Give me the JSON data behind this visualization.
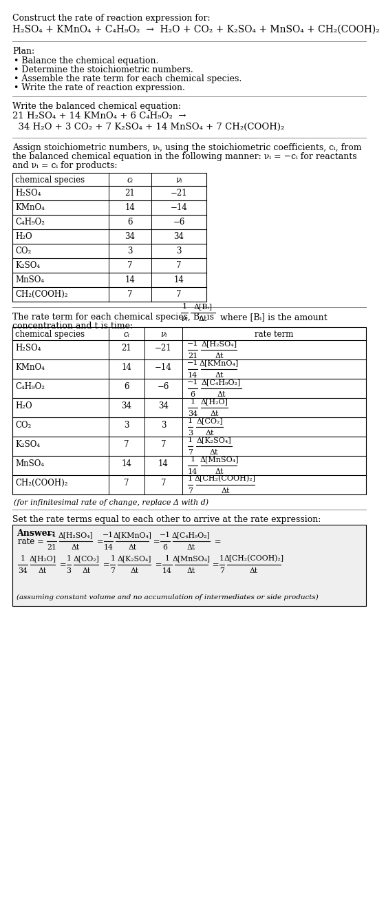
{
  "bg_color": "#ffffff",
  "font_family": "DejaVu Serif",
  "sections": {
    "title": "Construct the rate of reaction expression for:",
    "rxn_unbalanced": "H₂SO₄ + KMnO₄ + C₄H₉O₂  →  H₂O + CO₂ + K₂SO₄ + MnSO₄ + CH₂(COOH)₂",
    "plan_header": "Plan:",
    "plan_items": [
      "• Balance the chemical equation.",
      "• Determine the stoichiometric numbers.",
      "• Assemble the rate term for each chemical species.",
      "• Write the rate of reaction expression."
    ],
    "balanced_header": "Write the balanced chemical equation:",
    "balanced_line1": "21 H₂SO₄ + 14 KMnO₄ + 6 C₄H₉O₂  →",
    "balanced_line2": "  34 H₂O + 3 CO₂ + 7 K₂SO₄ + 14 MnSO₄ + 7 CH₂(COOH)₂",
    "stoich_intro": [
      "Assign stoichiometric numbers, νᵢ, using the stoichiometric coefficients, cᵢ, from",
      "the balanced chemical equation in the following manner: νᵢ = −cᵢ for reactants",
      "and νᵢ = cᵢ for products:"
    ],
    "table1_headers": [
      "chemical species",
      "cᵢ",
      "νᵢ"
    ],
    "table1_rows": [
      [
        "H₂SO₄",
        "21",
        "−21"
      ],
      [
        "KMnO₄",
        "14",
        "−14"
      ],
      [
        "C₄H₉O₂",
        "6",
        "−6"
      ],
      [
        "H₂O",
        "34",
        "34"
      ],
      [
        "CO₂",
        "3",
        "3"
      ],
      [
        "K₂SO₄",
        "7",
        "7"
      ],
      [
        "MnSO₄",
        "14",
        "14"
      ],
      [
        "CH₂(COOH)₂",
        "7",
        "7"
      ]
    ],
    "rate_intro": [
      "The rate term for each chemical species, Bᵢ, is FRAC where [Bᵢ] is the amount",
      "concentration and t is time:"
    ],
    "table2_headers": [
      "chemical species",
      "cᵢ",
      "νᵢ",
      "rate term"
    ],
    "table2_rows": [
      [
        "H₂SO₄",
        "21",
        "−21",
        "−1",
        "21",
        "Δ[H₂SO₄]",
        "Δt"
      ],
      [
        "KMnO₄",
        "14",
        "−14",
        "−1",
        "14",
        "Δ[KMnO₄]",
        "Δt"
      ],
      [
        "C₄H₉O₂",
        "6",
        "−6",
        "−1",
        "6",
        "Δ[C₄H₉O₂]",
        "Δt"
      ],
      [
        "H₂O",
        "34",
        "34",
        "1",
        "34",
        "Δ[H₂O]",
        "Δt"
      ],
      [
        "CO₂",
        "3",
        "3",
        "1",
        "3",
        "Δ[CO₂]",
        "Δt"
      ],
      [
        "K₂SO₄",
        "7",
        "7",
        "1",
        "7",
        "Δ[K₂SO₄]",
        "Δt"
      ],
      [
        "MnSO₄",
        "14",
        "14",
        "1",
        "14",
        "Δ[MnSO₄]",
        "Δt"
      ],
      [
        "CH₂(COOH)₂",
        "7",
        "7",
        "1",
        "7",
        "Δ[CH₂(COOH)₂]",
        "Δt"
      ]
    ],
    "infinitesimal_note": "(for infinitesimal rate of change, replace Δ with d)",
    "set_equal_text": "Set the rate terms equal to each other to arrive at the rate expression:",
    "answer_label": "Answer:",
    "answer_terms_line1": [
      [
        "−1",
        "21",
        "Δ[H₂SO₄]",
        "Δt"
      ],
      [
        "−1",
        "14",
        "Δ[KMnO₄]",
        "Δt"
      ],
      [
        "−1",
        "6",
        "Δ[C₄H₉O₂]",
        "Δt"
      ]
    ],
    "answer_terms_line2": [
      [
        "1",
        "34",
        "Δ[H₂O]",
        "Δt"
      ],
      [
        "1",
        "3",
        "Δ[CO₂]",
        "Δt"
      ],
      [
        "1",
        "7",
        "Δ[K₂SO₄]",
        "Δt"
      ],
      [
        "1",
        "14",
        "Δ[MnSO₄]",
        "Δt"
      ],
      [
        "1",
        "7",
        "Δ[CH₂(COOH)₂]",
        "Δt"
      ]
    ],
    "answer_note": "(assuming constant volume and no accumulation of intermediates or side products)"
  }
}
